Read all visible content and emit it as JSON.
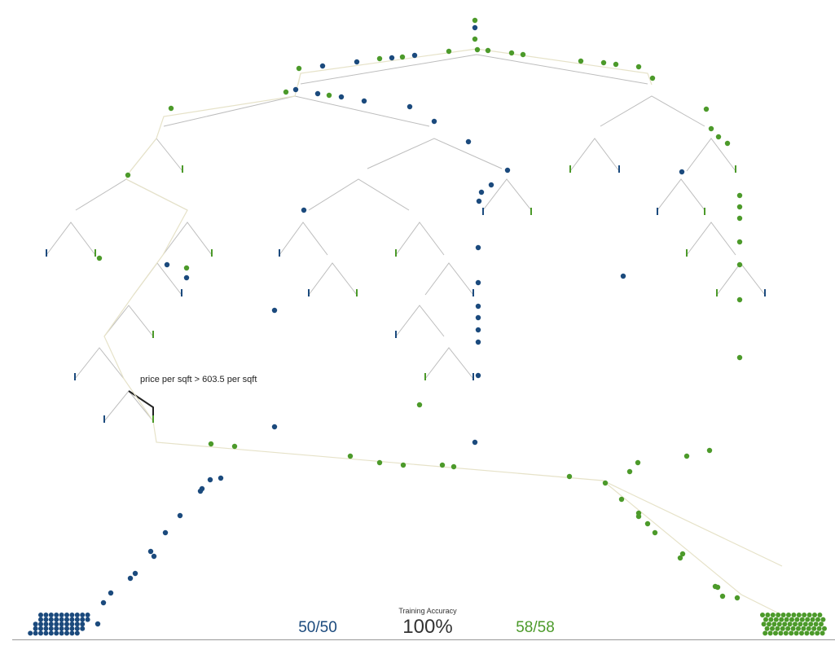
{
  "colors": {
    "class_a": "#1b4a7d",
    "class_b": "#4c9a2a",
    "branch": "#bdbdbd",
    "path": "#e6e2c8",
    "active": "#222222"
  },
  "split_label": "price per sqft > 603.5 per sqft",
  "accuracy": {
    "title": "Training Accuracy",
    "value": "100%"
  },
  "counts": {
    "left_num": "50",
    "left_den": "50",
    "right_num": "58",
    "right_den": "58",
    "sep": "/"
  }
}
